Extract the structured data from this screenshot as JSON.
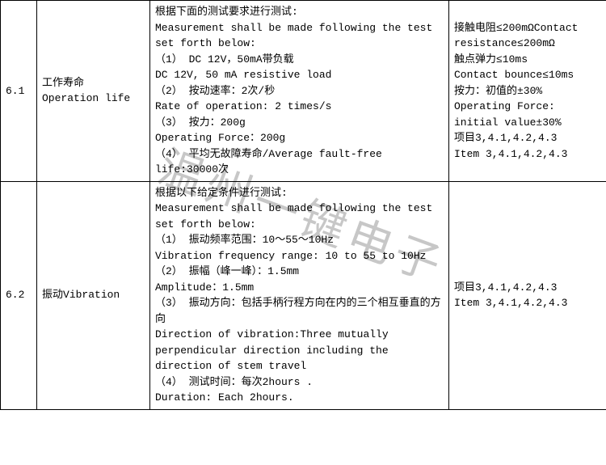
{
  "watermark": "温州一键电子",
  "rows": [
    {
      "num": "6.1",
      "name_cn": "工作寿命",
      "name_en": "Operation life",
      "test_l1": "根据下面的测试要求进行测试:",
      "test_l2": "Measurement shall be made following the test set forth below:",
      "test_l3": "（1） DC 12V，50mA带负载",
      "test_l4": "       DC 12V, 50 mA resistive load",
      "test_l5": "（2） 按动速率：2次/秒",
      "test_l6": "       Rate of operation: 2 times/s",
      "test_l7": "（3） 按力：200g",
      "test_l8": "       Operating Force：200g",
      "test_l9": "（4） 平均无故障寿命/Average fault-free life:30000次",
      "res_l1": "接触电阻≤200mΩContact resistance≤200mΩ",
      "res_l2": "触点弹力≤10ms",
      "res_l3": " Contact bounce≤10ms",
      "res_l4": "按力：初值的±30%",
      "res_l5": "Operating Force:",
      "res_l6": "initial value±30%",
      "res_l7": "项目3,4.1,4.2,4.3",
      "res_l8": "Item 3,4.1,4.2,4.3"
    },
    {
      "num": "6.2",
      "name_cn": "振动",
      "name_en": "Vibration",
      "test_l1": "根据以下给定条件进行测试:",
      "test_l2": "Measurement shall be made following the test set forth below:",
      "test_l3": "（1） 振动频率范围：10～55～10Hz",
      "test_l4": "Vibration frequency range: 10 to 55 to 10Hz",
      "test_l5": "（2） 振幅（峰一峰）：1.5mm",
      "test_l6": "       Amplitude：1.5mm",
      "test_l7": "（3） 振动方向：包括手柄行程方向在内的三个相互垂直的方向",
      "test_l8": "Direction of vibration:Three mutually perpendicular direction including the direction of stem travel",
      "test_l9": "（4） 测试时间：每次2hours .",
      "test_l10": "        Duration: Each 2hours.",
      "res_l1": "项目3,4.1,4.2,4.3",
      "res_l2": "Item 3,4.1,4.2,4.3"
    }
  ],
  "styles": {
    "font_size": 13,
    "border_color": "#000000",
    "background": "#ffffff",
    "watermark_color": "rgba(0,0,0,0.22)"
  }
}
